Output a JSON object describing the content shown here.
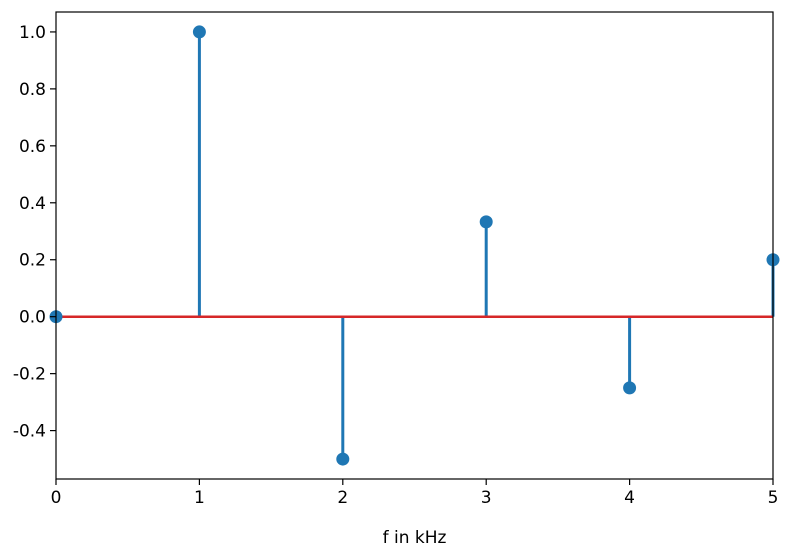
{
  "chart_data": {
    "type": "stem",
    "title": "",
    "xlabel": "f in kHz",
    "ylabel": "",
    "xlim": [
      0,
      5
    ],
    "ylim": [
      -0.57,
      1.07
    ],
    "x_ticks": [
      0,
      1,
      2,
      3,
      4,
      5
    ],
    "x_tick_labels": [
      "0",
      "1",
      "2",
      "3",
      "4",
      "5"
    ],
    "y_ticks": [
      -0.4,
      -0.2,
      0.0,
      0.2,
      0.4,
      0.6,
      0.8,
      1.0
    ],
    "y_tick_labels": [
      "-0.4",
      "-0.2",
      "0.0",
      "0.2",
      "0.4",
      "0.6",
      "0.8",
      "1.0"
    ],
    "grid": false,
    "baseline": 0,
    "series": [
      {
        "x": [
          0,
          1,
          2,
          3,
          4,
          5
        ],
        "y": [
          0.0,
          1.0,
          -0.5,
          0.333,
          -0.25,
          0.2
        ]
      }
    ],
    "colors": {
      "stem": "#1f77b4",
      "marker": "#1f77b4",
      "baseline": "#d62728",
      "axes": "#000000"
    }
  }
}
